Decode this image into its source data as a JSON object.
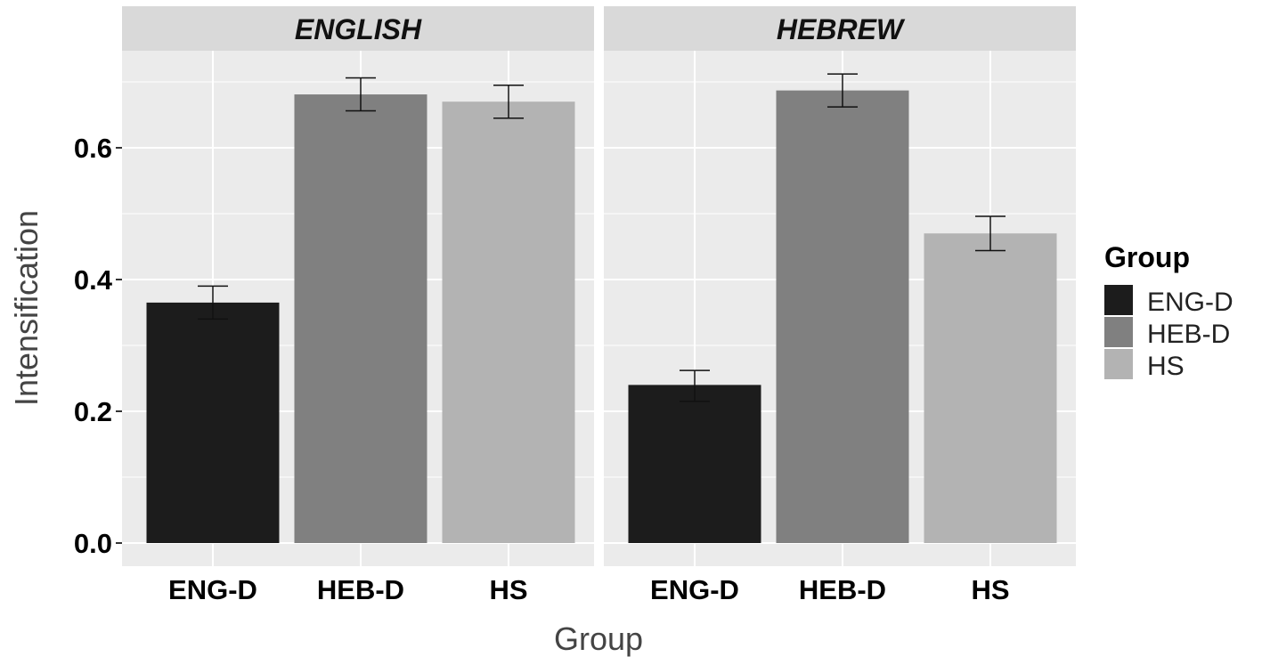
{
  "chart_data": {
    "type": "bar",
    "xlabel": "Group",
    "ylabel": "Intensification",
    "ylim": [
      0,
      0.72
    ],
    "yticks": [
      0.0,
      0.2,
      0.4,
      0.6
    ],
    "ytick_labels": [
      "0.0",
      "0.2",
      "0.4",
      "0.6"
    ],
    "categories": [
      "ENG-D",
      "HEB-D",
      "HS"
    ],
    "facets": [
      {
        "label": "ENGLISH",
        "values": [
          0.365,
          0.681,
          0.67
        ],
        "error_low": [
          0.34,
          0.656,
          0.645
        ],
        "error_high": [
          0.39,
          0.706,
          0.695
        ]
      },
      {
        "label": "HEBREW",
        "values": [
          0.24,
          0.687,
          0.47
        ],
        "error_low": [
          0.215,
          0.662,
          0.444
        ],
        "error_high": [
          0.262,
          0.712,
          0.496
        ]
      }
    ],
    "legend": {
      "title": "Group",
      "position": "right",
      "entries": [
        {
          "label": "ENG-D",
          "color": "#1c1c1c"
        },
        {
          "label": "HEB-D",
          "color": "#808080"
        },
        {
          "label": "HS",
          "color": "#b3b3b3"
        }
      ]
    },
    "grid": true,
    "colors": {
      "panel_bg": "#ebebeb",
      "strip_bg": "#d9d9d9",
      "grid": "#ffffff"
    }
  }
}
